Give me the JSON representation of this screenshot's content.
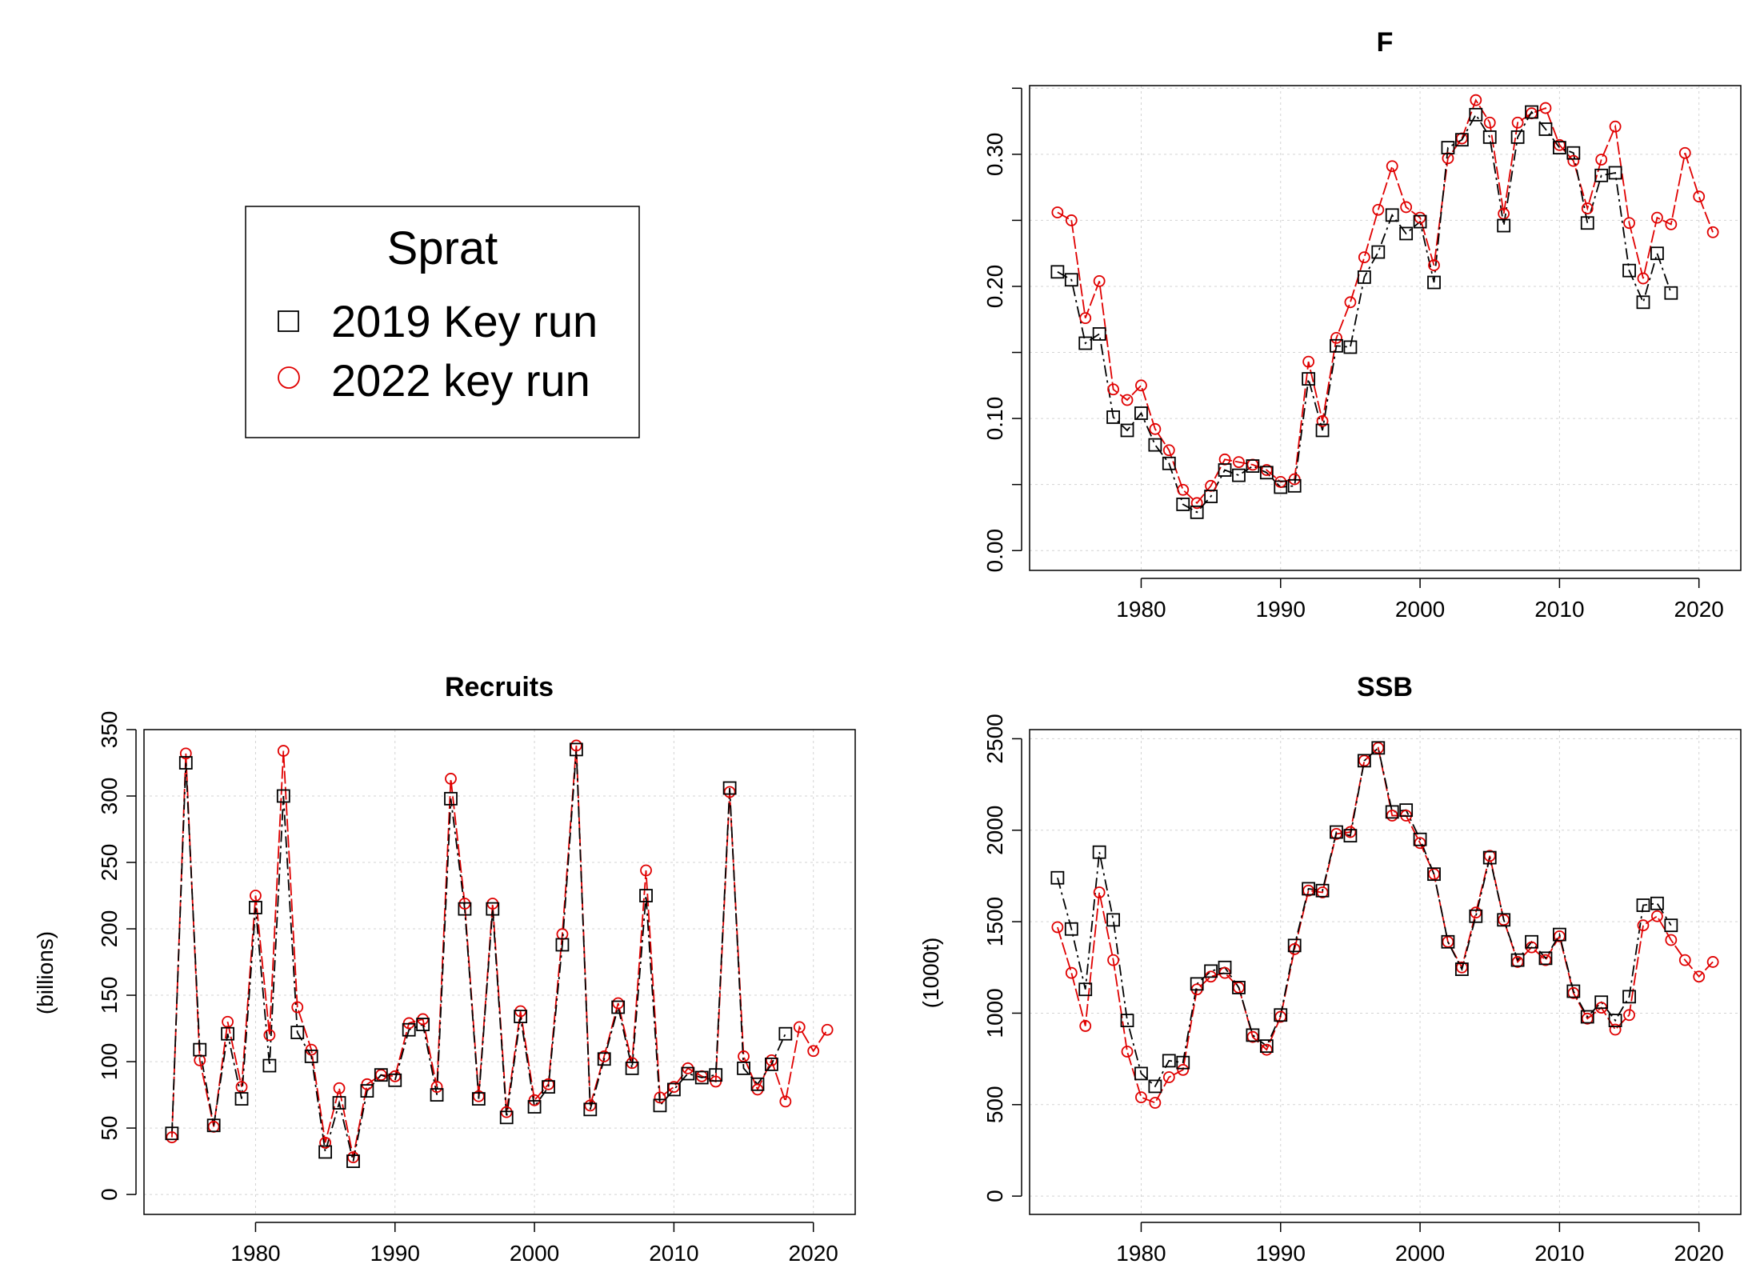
{
  "legend": {
    "title": "Sprat",
    "entries": [
      {
        "label": "2019 Key run",
        "color": "#000000",
        "marker": "square"
      },
      {
        "label": "2022 key run",
        "color": "#e00000",
        "marker": "circle"
      }
    ]
  },
  "chart_data": [
    {
      "id": "F",
      "type": "line",
      "title": "F",
      "ylabel": "",
      "xlabel": "",
      "xlim": [
        1972,
        2023
      ],
      "ylim": [
        -0.015,
        0.352
      ],
      "xticks": [
        1980,
        1990,
        2000,
        2010,
        2020
      ],
      "yticks": [
        0,
        0.05,
        0.1,
        0.15,
        0.2,
        0.25,
        0.3,
        0.35
      ],
      "ytick_labels": [
        "0.00",
        "",
        "0.10",
        "",
        "0.20",
        "",
        "0.30",
        ""
      ],
      "grid": true,
      "series": [
        {
          "name": "2019 Key run",
          "color": "#000000",
          "marker": "square",
          "x": [
            1974,
            1975,
            1976,
            1977,
            1978,
            1979,
            1980,
            1981,
            1982,
            1983,
            1984,
            1985,
            1986,
            1987,
            1988,
            1989,
            1990,
            1991,
            1992,
            1993,
            1994,
            1995,
            1996,
            1997,
            1998,
            1999,
            2000,
            2001,
            2002,
            2003,
            2004,
            2005,
            2006,
            2007,
            2008,
            2009,
            2010,
            2011,
            2012,
            2013,
            2014,
            2015,
            2016,
            2017,
            2018
          ],
          "values": [
            0.211,
            0.205,
            0.157,
            0.164,
            0.101,
            0.091,
            0.104,
            0.08,
            0.066,
            0.035,
            0.029,
            0.041,
            0.061,
            0.057,
            0.064,
            0.059,
            0.048,
            0.049,
            0.13,
            0.091,
            0.155,
            0.154,
            0.207,
            0.226,
            0.254,
            0.24,
            0.249,
            0.203,
            0.305,
            0.311,
            0.33,
            0.313,
            0.246,
            0.313,
            0.332,
            0.319,
            0.305,
            0.301,
            0.248,
            0.284,
            0.286,
            0.212,
            0.188,
            0.225,
            0.195
          ]
        },
        {
          "name": "2022 key run",
          "color": "#e00000",
          "marker": "circle",
          "x": [
            1974,
            1975,
            1976,
            1977,
            1978,
            1979,
            1980,
            1981,
            1982,
            1983,
            1984,
            1985,
            1986,
            1987,
            1988,
            1989,
            1990,
            1991,
            1992,
            1993,
            1994,
            1995,
            1996,
            1997,
            1998,
            1999,
            2000,
            2001,
            2002,
            2003,
            2004,
            2005,
            2006,
            2007,
            2008,
            2009,
            2010,
            2011,
            2012,
            2013,
            2014,
            2015,
            2016,
            2017,
            2018,
            2019,
            2020,
            2021
          ],
          "values": [
            0.256,
            0.25,
            0.176,
            0.204,
            0.122,
            0.114,
            0.125,
            0.092,
            0.076,
            0.046,
            0.036,
            0.049,
            0.069,
            0.067,
            0.065,
            0.061,
            0.052,
            0.054,
            0.143,
            0.098,
            0.161,
            0.188,
            0.222,
            0.258,
            0.291,
            0.26,
            0.252,
            0.216,
            0.297,
            0.312,
            0.341,
            0.324,
            0.255,
            0.324,
            0.331,
            0.335,
            0.307,
            0.295,
            0.259,
            0.296,
            0.321,
            0.248,
            0.206,
            0.252,
            0.247,
            0.301,
            0.268,
            0.241
          ]
        }
      ]
    },
    {
      "id": "Recruits",
      "type": "line",
      "title": "Recruits",
      "ylabel": "(billions)",
      "xlabel": "",
      "xlim": [
        1972,
        2023
      ],
      "ylim": [
        -15,
        350
      ],
      "xticks": [
        1980,
        1990,
        2000,
        2010,
        2020
      ],
      "yticks": [
        0,
        50,
        100,
        150,
        200,
        250,
        300,
        350
      ],
      "ytick_labels": [
        "0",
        "50",
        "100",
        "150",
        "200",
        "250",
        "300",
        "350"
      ],
      "grid": true,
      "series": [
        {
          "name": "2019 Key run",
          "color": "#000000",
          "marker": "square",
          "x": [
            1974,
            1975,
            1976,
            1977,
            1978,
            1979,
            1980,
            1981,
            1982,
            1983,
            1984,
            1985,
            1986,
            1987,
            1988,
            1989,
            1990,
            1991,
            1992,
            1993,
            1994,
            1995,
            1996,
            1997,
            1998,
            1999,
            2000,
            2001,
            2002,
            2003,
            2004,
            2005,
            2006,
            2007,
            2008,
            2009,
            2010,
            2011,
            2012,
            2013,
            2014,
            2015,
            2016,
            2017,
            2018
          ],
          "values": [
            46,
            325,
            109,
            52,
            121,
            72,
            216,
            97,
            300,
            122,
            104,
            32,
            69,
            25,
            78,
            90,
            86,
            124,
            128,
            75,
            298,
            215,
            72,
            215,
            58,
            134,
            66,
            81,
            188,
            335,
            64,
            102,
            141,
            95,
            225,
            67,
            79,
            91,
            88,
            90,
            306,
            95,
            83,
            98,
            121
          ]
        },
        {
          "name": "2022 key run",
          "color": "#e00000",
          "marker": "circle",
          "x": [
            1974,
            1975,
            1976,
            1977,
            1978,
            1979,
            1980,
            1981,
            1982,
            1983,
            1984,
            1985,
            1986,
            1987,
            1988,
            1989,
            1990,
            1991,
            1992,
            1993,
            1994,
            1995,
            1996,
            1997,
            1998,
            1999,
            2000,
            2001,
            2002,
            2003,
            2004,
            2005,
            2006,
            2007,
            2008,
            2009,
            2010,
            2011,
            2012,
            2013,
            2014,
            2015,
            2016,
            2017,
            2018,
            2019,
            2020,
            2021
          ],
          "values": [
            43,
            332,
            101,
            51,
            130,
            81,
            225,
            120,
            334,
            141,
            109,
            39,
            80,
            28,
            83,
            90,
            89,
            129,
            132,
            81,
            313,
            219,
            74,
            219,
            62,
            138,
            71,
            83,
            196,
            338,
            67,
            104,
            144,
            99,
            244,
            73,
            81,
            95,
            89,
            85,
            303,
            104,
            79,
            101,
            70,
            126,
            108,
            124
          ]
        }
      ]
    },
    {
      "id": "SSB",
      "type": "line",
      "title": "SSB",
      "ylabel": "(1000t)",
      "xlabel": "",
      "xlim": [
        1972,
        2023
      ],
      "ylim": [
        -100,
        2550
      ],
      "xticks": [
        1980,
        1990,
        2000,
        2010,
        2020
      ],
      "yticks": [
        0,
        500,
        1000,
        1500,
        2000,
        2500
      ],
      "ytick_labels": [
        "0",
        "500",
        "1000",
        "1500",
        "2000",
        "2500"
      ],
      "grid": true,
      "series": [
        {
          "name": "2019 Key run",
          "color": "#000000",
          "marker": "square",
          "x": [
            1974,
            1975,
            1976,
            1977,
            1978,
            1979,
            1980,
            1981,
            1982,
            1983,
            1984,
            1985,
            1986,
            1987,
            1988,
            1989,
            1990,
            1991,
            1992,
            1993,
            1994,
            1995,
            1996,
            1997,
            1998,
            1999,
            2000,
            2001,
            2002,
            2003,
            2004,
            2005,
            2006,
            2007,
            2008,
            2009,
            2010,
            2011,
            2012,
            2013,
            2014,
            2015,
            2016,
            2017,
            2018
          ],
          "values": [
            1740,
            1460,
            1130,
            1880,
            1510,
            960,
            670,
            600,
            740,
            730,
            1160,
            1230,
            1250,
            1140,
            880,
            820,
            990,
            1370,
            1680,
            1670,
            1990,
            1970,
            2380,
            2450,
            2100,
            2110,
            1950,
            1760,
            1390,
            1240,
            1530,
            1850,
            1510,
            1290,
            1390,
            1300,
            1430,
            1120,
            980,
            1060,
            960,
            1090,
            1590,
            1600,
            1480
          ]
        },
        {
          "name": "2022 key run",
          "color": "#e00000",
          "marker": "circle",
          "x": [
            1974,
            1975,
            1976,
            1977,
            1978,
            1979,
            1980,
            1981,
            1982,
            1983,
            1984,
            1985,
            1986,
            1987,
            1988,
            1989,
            1990,
            1991,
            1992,
            1993,
            1994,
            1995,
            1996,
            1997,
            1998,
            1999,
            2000,
            2001,
            2002,
            2003,
            2004,
            2005,
            2006,
            2007,
            2008,
            2009,
            2010,
            2011,
            2012,
            2013,
            2014,
            2015,
            2016,
            2017,
            2018,
            2019,
            2020,
            2021
          ],
          "values": [
            1470,
            1220,
            930,
            1660,
            1290,
            790,
            540,
            510,
            650,
            690,
            1130,
            1200,
            1220,
            1140,
            870,
            800,
            980,
            1350,
            1670,
            1660,
            1980,
            1990,
            2380,
            2450,
            2080,
            2080,
            1930,
            1760,
            1390,
            1250,
            1550,
            1860,
            1510,
            1280,
            1360,
            1290,
            1420,
            1110,
            970,
            1030,
            910,
            990,
            1480,
            1530,
            1400,
            1290,
            1200,
            1280
          ]
        }
      ]
    }
  ]
}
